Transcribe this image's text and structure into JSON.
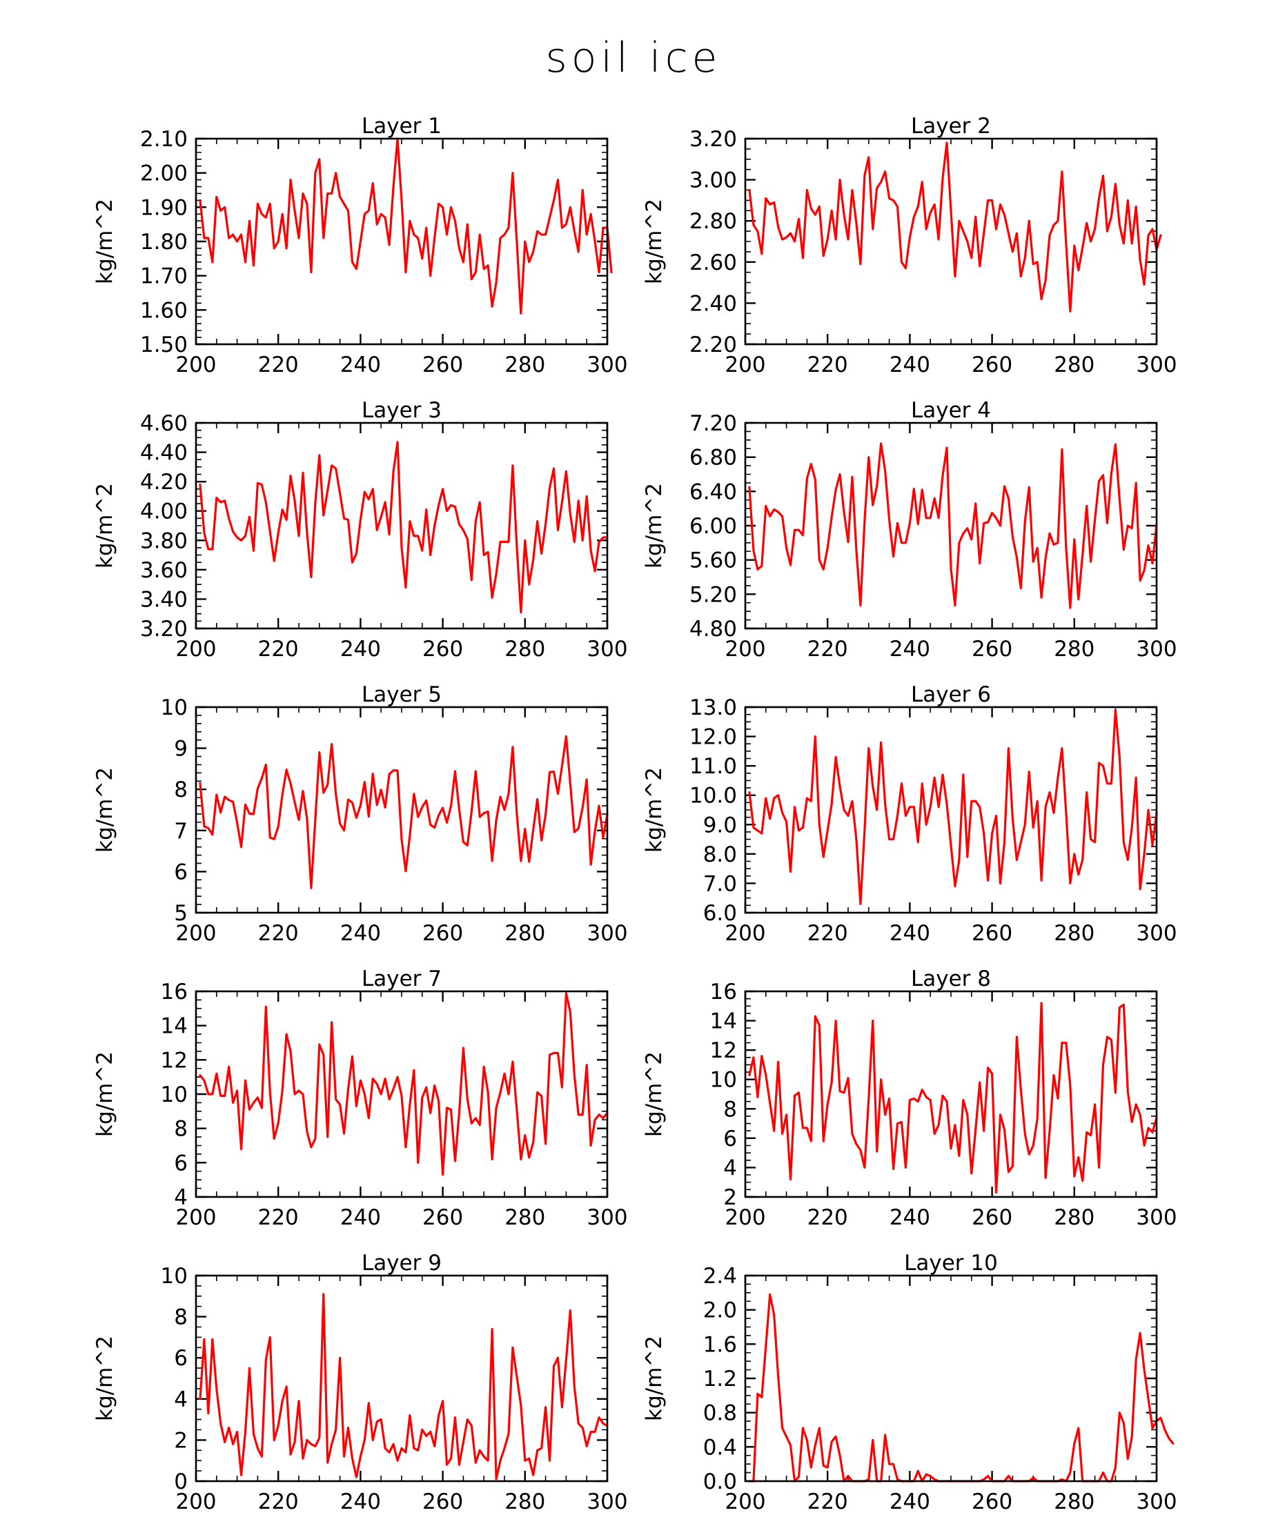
{
  "figure": {
    "title": "soil ice",
    "series_color": "#ff0000"
  },
  "chart_data": [
    {
      "type": "line",
      "title": "Layer 1",
      "xlabel": "",
      "ylabel": "kg/m^2",
      "xlim": [
        200,
        300
      ],
      "ylim": [
        1.5,
        2.1
      ],
      "xticks": [
        200,
        220,
        240,
        260,
        280,
        300
      ],
      "yticks": [
        1.5,
        1.6,
        1.7,
        1.8,
        1.9,
        2.0,
        2.1
      ],
      "ydec": 2,
      "xminor": 5,
      "yminor": 0.02,
      "x_start": 201,
      "x_step": 1,
      "values": [
        1.92,
        1.81,
        1.81,
        1.74,
        1.93,
        1.89,
        1.9,
        1.81,
        1.82,
        1.8,
        1.82,
        1.74,
        1.86,
        1.73,
        1.91,
        1.88,
        1.87,
        1.91,
        1.78,
        1.8,
        1.88,
        1.78,
        1.98,
        1.89,
        1.81,
        1.94,
        1.91,
        1.71,
        2.0,
        2.04,
        1.81,
        1.94,
        1.94,
        2.0,
        1.93,
        1.91,
        1.89,
        1.74,
        1.72,
        1.8,
        1.88,
        1.89,
        1.97,
        1.85,
        1.88,
        1.87,
        1.79,
        1.96,
        2.1,
        1.92,
        1.71,
        1.86,
        1.82,
        1.81,
        1.75,
        1.84,
        1.7,
        1.81,
        1.91,
        1.9,
        1.82,
        1.9,
        1.86,
        1.78,
        1.74,
        1.85,
        1.69,
        1.71,
        1.82,
        1.72,
        1.73,
        1.61,
        1.68,
        1.81,
        1.82,
        1.84,
        2.0,
        1.8,
        1.59,
        1.8,
        1.74,
        1.77,
        1.83,
        1.82,
        1.82,
        1.87,
        1.92,
        1.98,
        1.84,
        1.85,
        1.9,
        1.83,
        1.77,
        1.95,
        1.82,
        1.88,
        1.8,
        1.71,
        1.84,
        1.84,
        1.71
      ]
    },
    {
      "type": "line",
      "title": "Layer 2",
      "xlabel": "",
      "ylabel": "kg/m^2",
      "xlim": [
        200,
        300
      ],
      "ylim": [
        2.2,
        3.2
      ],
      "xticks": [
        200,
        220,
        240,
        260,
        280,
        300
      ],
      "yticks": [
        2.2,
        2.4,
        2.6,
        2.8,
        3.0,
        3.2
      ],
      "ydec": 2,
      "xminor": 5,
      "yminor": 0.05,
      "x_start": 201,
      "x_step": 1,
      "values": [
        2.95,
        2.78,
        2.75,
        2.64,
        2.91,
        2.88,
        2.89,
        2.77,
        2.71,
        2.72,
        2.74,
        2.7,
        2.81,
        2.62,
        2.95,
        2.86,
        2.83,
        2.87,
        2.63,
        2.71,
        2.85,
        2.71,
        3.0,
        2.83,
        2.71,
        2.95,
        2.79,
        2.59,
        3.02,
        3.11,
        2.76,
        2.96,
        2.99,
        3.04,
        2.91,
        2.9,
        2.87,
        2.6,
        2.57,
        2.72,
        2.82,
        2.87,
        2.99,
        2.76,
        2.84,
        2.88,
        2.71,
        3.01,
        3.18,
        2.85,
        2.53,
        2.8,
        2.75,
        2.7,
        2.62,
        2.82,
        2.58,
        2.74,
        2.9,
        2.9,
        2.76,
        2.88,
        2.83,
        2.74,
        2.65,
        2.74,
        2.53,
        2.62,
        2.8,
        2.59,
        2.6,
        2.42,
        2.51,
        2.73,
        2.78,
        2.8,
        3.04,
        2.69,
        2.36,
        2.68,
        2.56,
        2.67,
        2.79,
        2.7,
        2.76,
        2.91,
        3.02,
        2.75,
        2.82,
        2.98,
        2.78,
        2.69,
        2.9,
        2.69,
        2.87,
        2.61,
        2.49,
        2.73,
        2.76,
        2.66,
        2.73
      ]
    },
    {
      "type": "line",
      "title": "Layer 3",
      "xlabel": "",
      "ylabel": "kg/m^2",
      "xlim": [
        200,
        300
      ],
      "ylim": [
        3.2,
        4.6
      ],
      "xticks": [
        200,
        220,
        240,
        260,
        280,
        300
      ],
      "yticks": [
        3.2,
        3.4,
        3.6,
        3.8,
        4.0,
        4.2,
        4.4,
        4.6
      ],
      "ydec": 2,
      "xminor": 5,
      "yminor": 0.05,
      "x_start": 201,
      "x_step": 1,
      "values": [
        4.18,
        3.85,
        3.74,
        3.74,
        4.09,
        4.06,
        4.07,
        3.95,
        3.86,
        3.82,
        3.8,
        3.83,
        3.96,
        3.73,
        4.19,
        4.18,
        4.06,
        3.86,
        3.66,
        3.85,
        4.01,
        3.94,
        4.24,
        4.07,
        3.83,
        4.26,
        3.85,
        3.55,
        4.05,
        4.38,
        3.97,
        4.14,
        4.31,
        4.29,
        4.12,
        3.95,
        3.94,
        3.65,
        3.71,
        3.94,
        4.13,
        4.08,
        4.15,
        3.87,
        3.96,
        4.06,
        3.84,
        4.27,
        4.47,
        3.75,
        3.48,
        3.93,
        3.83,
        3.83,
        3.73,
        4.01,
        3.7,
        3.9,
        4.04,
        4.15,
        4.0,
        4.04,
        4.03,
        3.91,
        3.87,
        3.81,
        3.53,
        3.93,
        4.06,
        3.7,
        3.72,
        3.41,
        3.57,
        3.79,
        3.79,
        3.79,
        4.31,
        3.76,
        3.31,
        3.8,
        3.5,
        3.67,
        3.93,
        3.71,
        3.91,
        4.16,
        4.29,
        3.87,
        4.06,
        4.27,
        3.98,
        3.79,
        4.07,
        3.8,
        4.1,
        3.73,
        3.59,
        3.79,
        3.82,
        3.82
      ]
    },
    {
      "type": "line",
      "title": "Layer 4",
      "xlabel": "",
      "ylabel": "kg/m^2",
      "xlim": [
        200,
        300
      ],
      "ylim": [
        4.8,
        7.2
      ],
      "xticks": [
        200,
        220,
        240,
        260,
        280,
        300
      ],
      "yticks": [
        4.8,
        5.2,
        5.6,
        6.0,
        6.4,
        6.8,
        7.2
      ],
      "ydec": 2,
      "xminor": 5,
      "yminor": 0.1,
      "x_start": 201,
      "x_step": 1,
      "values": [
        6.45,
        5.71,
        5.49,
        5.53,
        6.23,
        6.11,
        6.19,
        6.16,
        6.11,
        5.74,
        5.54,
        5.95,
        5.95,
        5.89,
        6.55,
        6.72,
        6.54,
        5.6,
        5.49,
        5.74,
        6.1,
        6.42,
        6.6,
        6.16,
        5.81,
        6.57,
        5.71,
        5.07,
        6.05,
        6.8,
        6.24,
        6.46,
        6.96,
        6.64,
        6.07,
        5.64,
        6.03,
        5.8,
        5.8,
        6.03,
        6.43,
        6.02,
        6.42,
        6.09,
        6.09,
        6.32,
        6.09,
        6.59,
        6.91,
        5.5,
        5.07,
        5.8,
        5.91,
        5.97,
        5.84,
        6.26,
        5.56,
        6.03,
        6.04,
        6.15,
        6.09,
        6.0,
        6.46,
        6.32,
        5.87,
        5.63,
        5.27,
        6.05,
        6.45,
        5.58,
        5.74,
        5.16,
        5.62,
        5.91,
        5.78,
        5.8,
        6.89,
        5.74,
        5.04,
        5.84,
        5.14,
        5.66,
        6.23,
        5.58,
        6.07,
        6.52,
        6.59,
        6.03,
        6.61,
        6.95,
        6.3,
        5.72,
        6.0,
        5.97,
        6.5,
        5.36,
        5.48,
        5.77,
        5.56,
        6.02
      ]
    },
    {
      "type": "line",
      "title": "Layer 5",
      "xlabel": "",
      "ylabel": "kg/m^2",
      "xlim": [
        200,
        300
      ],
      "ylim": [
        5,
        10
      ],
      "xticks": [
        200,
        220,
        240,
        260,
        280,
        300
      ],
      "yticks": [
        5,
        6,
        7,
        8,
        9,
        10
      ],
      "ydec": 0,
      "xminor": 5,
      "yminor": 0.2,
      "x_start": 201,
      "x_step": 1,
      "values": [
        8.15,
        7.1,
        7.06,
        6.9,
        7.87,
        7.44,
        7.82,
        7.74,
        7.7,
        7.19,
        6.6,
        7.63,
        7.41,
        7.4,
        8.02,
        8.27,
        8.6,
        6.83,
        6.79,
        7.09,
        7.87,
        8.48,
        8.14,
        7.69,
        7.26,
        7.96,
        7.29,
        5.6,
        7.25,
        8.9,
        7.92,
        8.11,
        9.1,
        7.89,
        7.17,
        7.0,
        7.75,
        7.68,
        7.31,
        7.61,
        8.18,
        7.34,
        8.38,
        7.62,
        7.99,
        7.56,
        8.37,
        8.46,
        8.46,
        6.78,
        6.01,
        6.88,
        7.89,
        7.33,
        7.57,
        7.73,
        7.14,
        7.07,
        7.37,
        7.55,
        7.19,
        7.6,
        8.44,
        7.51,
        6.72,
        6.64,
        7.46,
        8.44,
        7.33,
        7.42,
        7.46,
        6.26,
        7.25,
        7.82,
        7.5,
        7.89,
        9.03,
        7.41,
        6.26,
        7.04,
        6.24,
        7.02,
        7.76,
        6.76,
        7.38,
        8.42,
        8.43,
        7.89,
        8.57,
        9.29,
        8.14,
        6.96,
        7.05,
        7.56,
        8.24,
        6.17,
        6.99,
        7.6,
        6.83,
        7.39
      ]
    },
    {
      "type": "line",
      "title": "Layer 6",
      "xlabel": "",
      "ylabel": "kg/m^2",
      "xlim": [
        200,
        300
      ],
      "ylim": [
        6.0,
        13.0
      ],
      "xticks": [
        200,
        220,
        240,
        260,
        280,
        300
      ],
      "yticks": [
        6.0,
        7.0,
        8.0,
        9.0,
        10.0,
        11.0,
        12.0,
        13.0
      ],
      "ydec": 1,
      "xminor": 5,
      "yminor": 0.25,
      "x_start": 201,
      "x_step": 1,
      "values": [
        10.1,
        8.9,
        8.8,
        8.7,
        9.9,
        9.2,
        9.9,
        10.0,
        9.4,
        9.1,
        7.4,
        9.6,
        8.8,
        8.9,
        9.9,
        9.8,
        12.0,
        9.0,
        7.9,
        8.8,
        9.7,
        11.3,
        10.3,
        9.5,
        9.3,
        9.8,
        8.5,
        6.3,
        8.8,
        11.6,
        10.3,
        9.5,
        11.8,
        9.7,
        8.5,
        8.5,
        9.3,
        10.4,
        9.3,
        9.6,
        9.6,
        8.4,
        10.4,
        9.0,
        9.6,
        10.6,
        9.6,
        10.7,
        9.7,
        8.3,
        6.9,
        7.8,
        10.7,
        7.9,
        9.8,
        9.8,
        9.6,
        8.7,
        7.1,
        8.7,
        9.3,
        7.0,
        8.4,
        11.6,
        9.2,
        7.8,
        8.4,
        9.0,
        10.8,
        8.9,
        9.8,
        7.1,
        9.6,
        10.1,
        9.4,
        10.6,
        11.6,
        9.4,
        7.0,
        8.0,
        7.3,
        7.8,
        10.1,
        8.5,
        8.4,
        11.1,
        11.0,
        10.4,
        10.4,
        12.9,
        11.3,
        8.4,
        7.8,
        8.9,
        10.6,
        6.8,
        8.0,
        9.5,
        8.3,
        9.4
      ]
    },
    {
      "type": "line",
      "title": "Layer 7",
      "xlabel": "",
      "ylabel": "kg/m^2",
      "xlim": [
        200,
        300
      ],
      "ylim": [
        4,
        16
      ],
      "xticks": [
        200,
        220,
        240,
        260,
        280,
        300
      ],
      "yticks": [
        4,
        6,
        8,
        10,
        12,
        14,
        16
      ],
      "ydec": 0,
      "xminor": 5,
      "yminor": 0.5,
      "x_start": 201,
      "x_step": 1,
      "values": [
        11.1,
        10.8,
        10.0,
        10.0,
        11.2,
        9.9,
        9.9,
        11.6,
        9.5,
        10.2,
        6.8,
        10.8,
        9.1,
        9.5,
        9.8,
        9.2,
        15.1,
        10.1,
        7.4,
        8.3,
        10.2,
        13.5,
        12.5,
        10.0,
        10.2,
        10.0,
        7.8,
        6.9,
        7.4,
        12.9,
        12.3,
        7.5,
        14.2,
        9.7,
        9.4,
        7.7,
        10.3,
        12.2,
        9.3,
        10.8,
        10.0,
        8.6,
        10.9,
        10.6,
        10.0,
        10.9,
        9.7,
        10.3,
        11.0,
        9.9,
        6.9,
        9.4,
        11.4,
        6.0,
        9.8,
        10.4,
        8.9,
        10.5,
        9.6,
        5.3,
        9.2,
        9.1,
        6.1,
        8.9,
        12.7,
        9.7,
        8.3,
        8.6,
        8.2,
        11.6,
        10.1,
        6.2,
        9.2,
        10.1,
        11.2,
        10.0,
        11.9,
        9.1,
        6.2,
        7.6,
        6.3,
        7.2,
        10.1,
        9.9,
        7.1,
        12.3,
        12.4,
        12.4,
        10.4,
        15.9,
        14.8,
        11.1,
        8.8,
        8.8,
        11.7,
        7.0,
        8.5,
        8.8,
        8.6,
        8.9
      ]
    },
    {
      "type": "line",
      "title": "Layer 8",
      "xlabel": "",
      "ylabel": "kg/m^2",
      "xlim": [
        200,
        300
      ],
      "ylim": [
        2,
        16
      ],
      "xticks": [
        200,
        220,
        240,
        260,
        280,
        300
      ],
      "yticks": [
        2,
        4,
        6,
        8,
        10,
        12,
        14,
        16
      ],
      "ydec": 0,
      "xminor": 5,
      "yminor": 0.5,
      "x_start": 201,
      "x_step": 1,
      "values": [
        10.3,
        11.5,
        8.8,
        11.6,
        10.3,
        8.4,
        6.5,
        11.2,
        6.3,
        7.6,
        3.2,
        8.9,
        9.1,
        6.7,
        6.7,
        5.8,
        14.3,
        13.7,
        5.8,
        8.3,
        9.8,
        14.0,
        9.2,
        9.1,
        10.1,
        6.3,
        5.6,
        5.2,
        4.0,
        8.7,
        14.0,
        5.1,
        10.0,
        7.6,
        8.7,
        3.9,
        7.0,
        7.1,
        4.0,
        8.6,
        8.7,
        8.5,
        9.3,
        8.8,
        8.6,
        6.3,
        6.9,
        8.9,
        8.5,
        5.3,
        6.9,
        4.8,
        8.6,
        7.6,
        3.6,
        6.6,
        9.8,
        6.5,
        10.8,
        10.4,
        2.3,
        7.6,
        6.6,
        3.7,
        4.1,
        12.9,
        9.3,
        6.3,
        4.9,
        5.5,
        7.3,
        15.2,
        3.3,
        6.5,
        10.3,
        8.7,
        12.5,
        12.5,
        9.6,
        3.4,
        4.7,
        3.1,
        6.4,
        6.2,
        8.3,
        4.0,
        11.0,
        12.9,
        12.7,
        9.1,
        14.9,
        15.1,
        9.2,
        7.1,
        8.3,
        7.6,
        5.5,
        6.7,
        6.4,
        7.4
      ]
    },
    {
      "type": "line",
      "title": "Layer 9",
      "xlabel": "",
      "ylabel": "kg/m^2",
      "xlim": [
        200,
        300
      ],
      "ylim": [
        0,
        10
      ],
      "xticks": [
        200,
        220,
        240,
        260,
        280,
        300
      ],
      "yticks": [
        0,
        2,
        4,
        6,
        8,
        10
      ],
      "ydec": 0,
      "xminor": 5,
      "yminor": 0.5,
      "x_start": 201,
      "x_step": 1,
      "values": [
        4.0,
        6.9,
        3.3,
        6.9,
        4.5,
        2.8,
        1.9,
        2.6,
        1.8,
        2.4,
        0.3,
        2.4,
        5.5,
        2.3,
        1.6,
        1.2,
        5.9,
        7.0,
        2.0,
        2.7,
        3.9,
        4.6,
        1.3,
        1.9,
        3.9,
        1.1,
        2.0,
        1.8,
        1.7,
        2.1,
        9.1,
        0.9,
        1.8,
        2.5,
        6.0,
        1.2,
        2.6,
        1.1,
        0.2,
        1.2,
        2.0,
        3.8,
        2.0,
        2.9,
        3.0,
        1.6,
        1.4,
        1.8,
        1.0,
        1.6,
        1.4,
        3.2,
        1.6,
        1.5,
        2.5,
        2.2,
        2.4,
        1.7,
        3.2,
        3.9,
        0.8,
        1.1,
        3.1,
        0.8,
        1.9,
        3.0,
        2.7,
        0.9,
        1.5,
        1.2,
        1.0,
        7.4,
        0.1,
        1.0,
        1.6,
        2.3,
        6.5,
        5.1,
        3.7,
        1.0,
        1.1,
        0.3,
        1.5,
        1.6,
        3.6,
        1.0,
        5.6,
        6.0,
        3.6,
        5.9,
        8.3,
        4.6,
        2.8,
        2.6,
        1.7,
        2.4,
        2.4,
        3.1,
        2.8,
        2.7
      ]
    },
    {
      "type": "line",
      "title": "Layer 10",
      "xlabel": "",
      "ylabel": "kg/m^2",
      "xlim": [
        200,
        300
      ],
      "ylim": [
        0.0,
        2.4
      ],
      "xticks": [
        200,
        220,
        240,
        260,
        280,
        300
      ],
      "yticks": [
        0.0,
        0.4,
        0.8,
        1.2,
        1.6,
        2.0,
        2.4
      ],
      "ydec": 1,
      "xminor": 5,
      "yminor": 0.1,
      "x_start": 201,
      "x_step": 1,
      "values": [
        0.0,
        0.0,
        1.02,
        0.98,
        1.58,
        2.18,
        1.94,
        1.22,
        0.62,
        0.52,
        0.42,
        0.0,
        0.05,
        0.62,
        0.48,
        0.16,
        0.42,
        0.62,
        0.18,
        0.16,
        0.46,
        0.52,
        0.3,
        0.0,
        0.06,
        0.0,
        0.0,
        0.0,
        0.0,
        0.02,
        0.48,
        0.0,
        0.0,
        0.54,
        0.2,
        0.2,
        0.02,
        0.0,
        0.0,
        0.0,
        0.0,
        0.12,
        0.0,
        0.08,
        0.06,
        0.02,
        0.0,
        0.0,
        0.0,
        0.0,
        0.0,
        0.0,
        0.0,
        0.0,
        0.0,
        0.0,
        0.0,
        0.02,
        0.06,
        0.0,
        0.0,
        0.0,
        0.0,
        0.06,
        0.0,
        0.0,
        0.0,
        0.0,
        0.0,
        0.04,
        0.0,
        0.0,
        0.0,
        0.0,
        0.0,
        0.0,
        0.02,
        0.0,
        0.1,
        0.44,
        0.62,
        0.0,
        0.0,
        0.0,
        0.0,
        0.0,
        0.1,
        0.0,
        0.0,
        0.16,
        0.8,
        0.68,
        0.26,
        0.52,
        1.42,
        1.73,
        1.3,
        0.96,
        0.62,
        0.7,
        0.74,
        0.6,
        0.5,
        0.44
      ]
    }
  ]
}
